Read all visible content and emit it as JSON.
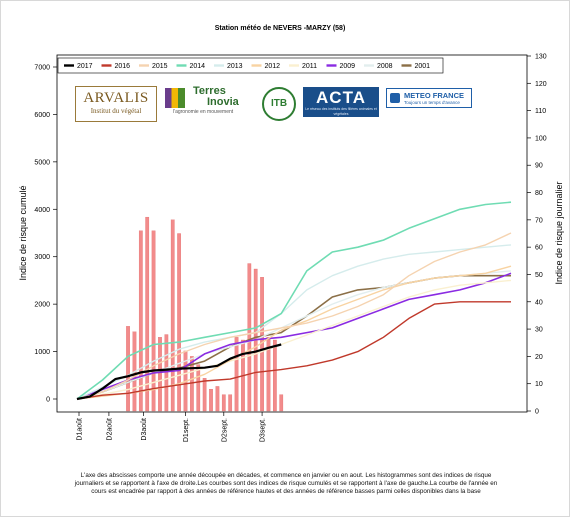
{
  "chart_data": {
    "type": "line",
    "title": "Station météo de NEVERS  -MARZY (58)",
    "ylabel_left": "Indice de risque cumulé",
    "ylabel_right": "Indice de risque journalier",
    "ylim_left": [
      0,
      7000
    ],
    "ylim_right": [
      0,
      130
    ],
    "y_ticks_left": [
      "0",
      "1000",
      "2000",
      "3000",
      "4000",
      "5000",
      "6000",
      "7000"
    ],
    "y_ticks_right": [
      "0",
      "10",
      "20",
      "30",
      "40",
      "50",
      "60",
      "70",
      "80",
      "90",
      "100",
      "110",
      "120",
      "130"
    ],
    "x_tick_labels": [
      "D1août",
      "D2août",
      "D3août",
      "D1sept.",
      "D2sept.",
      "D3sept."
    ],
    "x_index_range": [
      0,
      34
    ],
    "legend_placement": "top-left",
    "series": [
      {
        "name": "2017",
        "color": "#000000",
        "width": 2.2,
        "x": [
          0,
          1,
          2,
          3,
          4,
          5,
          6,
          7,
          8,
          9,
          10,
          11,
          12,
          13,
          14,
          15,
          16
        ],
        "y": [
          0,
          50,
          220,
          420,
          480,
          560,
          600,
          620,
          640,
          650,
          660,
          700,
          850,
          950,
          1000,
          1080,
          1150
        ]
      },
      {
        "name": "2016",
        "color": "#c0392b",
        "width": 1.4,
        "x": [
          0,
          2,
          4,
          6,
          8,
          10,
          12,
          14,
          16,
          18,
          20,
          22,
          24,
          26,
          28,
          30,
          32,
          34
        ],
        "y": [
          0,
          80,
          120,
          220,
          300,
          380,
          420,
          560,
          620,
          700,
          820,
          1000,
          1300,
          1700,
          2000,
          2050,
          2050,
          2050
        ]
      },
      {
        "name": "2015",
        "color": "#f5d3b0",
        "width": 1.4,
        "x": [
          0,
          2,
          4,
          6,
          8,
          10,
          12,
          14,
          16,
          18,
          20,
          22,
          24,
          26,
          28,
          30,
          32,
          34
        ],
        "y": [
          0,
          150,
          400,
          700,
          950,
          1150,
          1300,
          1400,
          1500,
          1600,
          1750,
          1950,
          2200,
          2600,
          2900,
          3100,
          3250,
          3500
        ]
      },
      {
        "name": "2014",
        "color": "#6fdcb3",
        "width": 1.6,
        "x": [
          0,
          2,
          4,
          6,
          8,
          10,
          12,
          14,
          16,
          18,
          20,
          22,
          24,
          26,
          28,
          30,
          32,
          34
        ],
        "y": [
          0,
          400,
          900,
          1150,
          1200,
          1300,
          1400,
          1500,
          1800,
          2700,
          3100,
          3200,
          3350,
          3600,
          3800,
          4000,
          4100,
          4150
        ]
      },
      {
        "name": "2013",
        "color": "#d5ecec",
        "width": 1.4,
        "x": [
          0,
          2,
          4,
          6,
          8,
          10,
          12,
          14,
          16,
          18,
          20,
          22,
          24,
          26,
          28,
          30,
          32,
          34
        ],
        "y": [
          0,
          250,
          500,
          800,
          1050,
          1200,
          1300,
          1400,
          1800,
          2300,
          2600,
          2800,
          2950,
          3050,
          3100,
          3150,
          3200,
          3250
        ]
      },
      {
        "name": "2012",
        "color": "#f8d3a2",
        "width": 1.4,
        "x": [
          0,
          2,
          4,
          6,
          8,
          10,
          12,
          14,
          16,
          18,
          20,
          22,
          24,
          26,
          28,
          30,
          32,
          34
        ],
        "y": [
          0,
          60,
          120,
          200,
          320,
          520,
          820,
          1100,
          1450,
          1650,
          1900,
          2100,
          2300,
          2450,
          2550,
          2600,
          2650,
          2800
        ]
      },
      {
        "name": "2011",
        "color": "#faf0d0",
        "width": 1.4,
        "x": [
          0,
          2,
          4,
          6,
          8,
          10,
          12,
          14,
          16,
          18,
          20,
          22,
          24,
          26,
          28,
          30,
          32,
          34
        ],
        "y": [
          0,
          100,
          200,
          350,
          500,
          650,
          800,
          950,
          1150,
          1350,
          1550,
          1750,
          1950,
          2150,
          2300,
          2400,
          2450,
          2500
        ]
      },
      {
        "name": "2009",
        "color": "#8a2be2",
        "width": 1.6,
        "x": [
          0,
          2,
          4,
          6,
          8,
          10,
          12,
          14,
          16,
          18,
          20,
          22,
          24,
          26,
          28,
          30,
          32,
          34
        ],
        "y": [
          0,
          200,
          400,
          550,
          600,
          950,
          1150,
          1250,
          1300,
          1400,
          1500,
          1700,
          1900,
          2100,
          2200,
          2300,
          2450,
          2650
        ]
      },
      {
        "name": "2008",
        "color": "#e2eeee",
        "width": 1.4,
        "x": [
          0,
          2,
          4,
          6,
          8,
          10,
          12,
          14,
          16,
          18,
          20,
          22,
          24,
          26,
          28,
          30,
          32,
          34
        ],
        "y": [
          0,
          150,
          350,
          550,
          750,
          950,
          1100,
          1250,
          1500,
          1750,
          2000,
          2200,
          2350,
          2450,
          2550,
          2600,
          2650,
          2700
        ]
      },
      {
        "name": "2001",
        "color": "#8b6f47",
        "width": 1.6,
        "x": [
          0,
          2,
          4,
          6,
          8,
          10,
          12,
          14,
          16,
          18,
          20,
          22,
          24,
          26,
          28,
          30,
          32,
          34
        ],
        "y": [
          0,
          150,
          350,
          550,
          650,
          800,
          1100,
          1300,
          1400,
          1750,
          2150,
          2300,
          2350,
          2450,
          2550,
          2600,
          2600,
          2600
        ]
      }
    ],
    "daily_bars": {
      "color": "#f28b8b",
      "axis": "right",
      "x": [
        4,
        4.5,
        5,
        5.5,
        6,
        6.5,
        7,
        7.5,
        8,
        8.5,
        9,
        9.5,
        10,
        10.5,
        11,
        11.5,
        12,
        12.5,
        13,
        13.5,
        14,
        14.5,
        15,
        15.5,
        16
      ],
      "values": [
        31,
        29,
        66,
        71,
        66,
        27,
        28,
        70,
        65,
        22,
        20,
        17,
        12,
        8,
        9,
        6,
        6,
        27,
        26,
        54,
        52,
        49,
        27,
        26,
        6
      ]
    }
  },
  "logos": {
    "arvalis_name": "ARVALIS",
    "arvalis_sub": "Institut du végétal",
    "terres_line1": "Terres",
    "terres_line2": "Inovia",
    "terres_tagline": "l'agronomie en mouvement",
    "itb": "ITB",
    "acta_name": "ACTA",
    "acta_sub": "Le réseau des instituts des filières animales et végétales",
    "meteo_name": "METEO FRANCE",
    "meteo_sub": "Toujours un temps d'avance"
  },
  "caption": {
    "line1": "L'axe des abscisses comporte une année découpée en décades, et commence en janvier  ou en aout. Les histogrammes sont des indices de risque",
    "line2": "journaliers et se rapportent à l'axe de droite.Les courbes sont des indices de risque cumulés et se rapportent à l'axe de gauche.La courbe de l'année en",
    "line3": "cours est encadrée par rapport à des années de référence hautes et des années de référence basses parmi celles disponibles dans la base"
  }
}
